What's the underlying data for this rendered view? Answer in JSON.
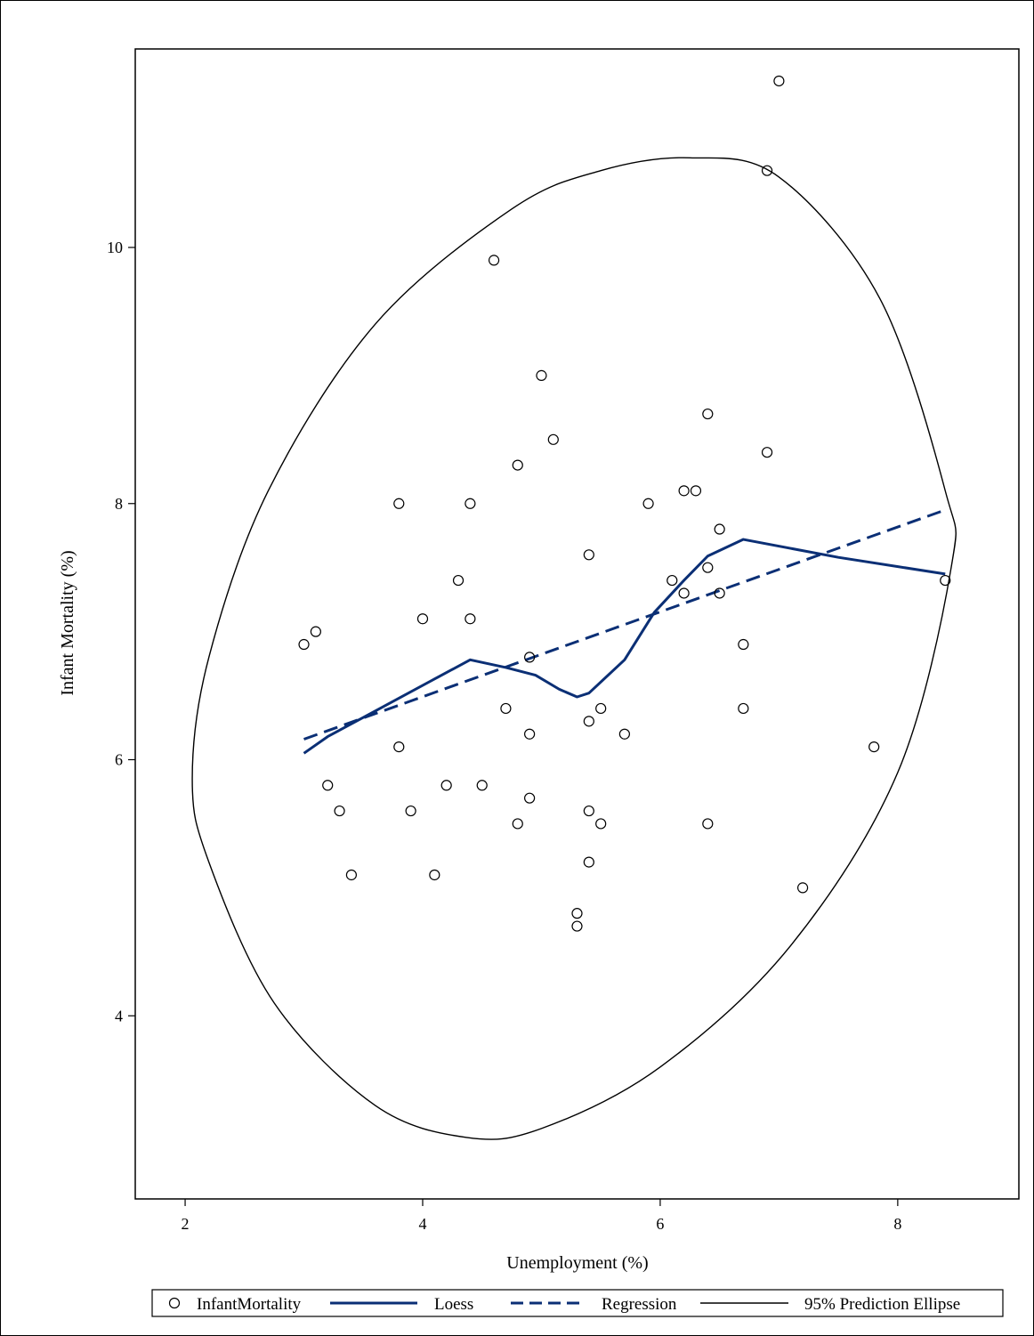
{
  "chart_data": {
    "type": "scatter",
    "title": "",
    "xlabel": "Unemployment (%)",
    "ylabel": "Infant Mortality (%)",
    "xlim": [
      1.58,
      9.02
    ],
    "ylim": [
      2.57,
      11.55
    ],
    "xticks": [
      2,
      4,
      6,
      8
    ],
    "yticks": [
      4,
      6,
      8,
      10
    ],
    "grid": false,
    "legend_position": "bottom",
    "colors": {
      "points": "#000000",
      "fit": "#0b2f75",
      "ellipse": "#000000"
    },
    "series": [
      {
        "name": "InfantMortality",
        "kind": "scatter",
        "points": [
          [
            3.0,
            6.9
          ],
          [
            3.1,
            7.0
          ],
          [
            3.2,
            5.8
          ],
          [
            3.3,
            5.6
          ],
          [
            3.4,
            5.1
          ],
          [
            3.8,
            8.0
          ],
          [
            3.8,
            6.1
          ],
          [
            3.9,
            5.6
          ],
          [
            4.0,
            7.1
          ],
          [
            4.1,
            5.1
          ],
          [
            4.2,
            5.8
          ],
          [
            4.3,
            7.4
          ],
          [
            4.4,
            8.0
          ],
          [
            4.4,
            7.1
          ],
          [
            4.5,
            5.8
          ],
          [
            4.6,
            9.9
          ],
          [
            4.7,
            6.4
          ],
          [
            4.8,
            8.3
          ],
          [
            4.8,
            5.5
          ],
          [
            4.9,
            6.8
          ],
          [
            4.9,
            6.2
          ],
          [
            4.9,
            5.7
          ],
          [
            5.0,
            9.0
          ],
          [
            5.1,
            8.5
          ],
          [
            5.3,
            4.8
          ],
          [
            5.3,
            4.7
          ],
          [
            5.4,
            7.6
          ],
          [
            5.4,
            6.3
          ],
          [
            5.4,
            5.6
          ],
          [
            5.4,
            5.2
          ],
          [
            5.5,
            6.4
          ],
          [
            5.5,
            5.5
          ],
          [
            5.7,
            6.2
          ],
          [
            5.9,
            8.0
          ],
          [
            6.1,
            7.4
          ],
          [
            6.2,
            8.1
          ],
          [
            6.2,
            7.3
          ],
          [
            6.3,
            8.1
          ],
          [
            6.4,
            8.7
          ],
          [
            6.4,
            7.5
          ],
          [
            6.4,
            5.5
          ],
          [
            6.5,
            7.8
          ],
          [
            6.5,
            7.3
          ],
          [
            6.7,
            6.9
          ],
          [
            6.7,
            6.4
          ],
          [
            6.9,
            10.6
          ],
          [
            6.9,
            8.4
          ],
          [
            7.0,
            11.3
          ],
          [
            7.2,
            5.0
          ],
          [
            7.8,
            6.1
          ],
          [
            8.4,
            7.4
          ]
        ]
      },
      {
        "name": "Loess",
        "kind": "line",
        "points": [
          [
            3.0,
            6.05
          ],
          [
            3.2,
            6.18
          ],
          [
            3.5,
            6.33
          ],
          [
            3.8,
            6.48
          ],
          [
            4.1,
            6.63
          ],
          [
            4.4,
            6.78
          ],
          [
            4.7,
            6.72
          ],
          [
            4.95,
            6.66
          ],
          [
            5.15,
            6.55
          ],
          [
            5.3,
            6.49
          ],
          [
            5.4,
            6.52
          ],
          [
            5.7,
            6.78
          ],
          [
            5.95,
            7.15
          ],
          [
            6.2,
            7.4
          ],
          [
            6.4,
            7.59
          ],
          [
            6.7,
            7.72
          ],
          [
            7.5,
            7.58
          ],
          [
            8.4,
            7.45
          ]
        ]
      },
      {
        "name": "Regression",
        "kind": "line",
        "dashed": true,
        "points": [
          [
            3.0,
            6.16
          ],
          [
            8.4,
            7.95
          ]
        ]
      },
      {
        "name": "95% Prediction Ellipse",
        "kind": "ellipse",
        "center": [
          5.31,
          6.93
        ],
        "points": [
          [
            6.25,
            10.7
          ],
          [
            7.0,
            10.55
          ],
          [
            7.85,
            9.6
          ],
          [
            8.4,
            8.1
          ],
          [
            8.45,
            7.5
          ],
          [
            8.0,
            5.9
          ],
          [
            7.1,
            4.55
          ],
          [
            6.0,
            3.6
          ],
          [
            5.0,
            3.12
          ],
          [
            4.37,
            3.05
          ],
          [
            3.6,
            3.3
          ],
          [
            2.75,
            4.1
          ],
          [
            2.2,
            5.2
          ],
          [
            2.06,
            5.85
          ],
          [
            2.2,
            6.8
          ],
          [
            2.7,
            8.1
          ],
          [
            3.6,
            9.4
          ],
          [
            4.75,
            10.3
          ],
          [
            5.5,
            10.6
          ]
        ]
      }
    ]
  }
}
